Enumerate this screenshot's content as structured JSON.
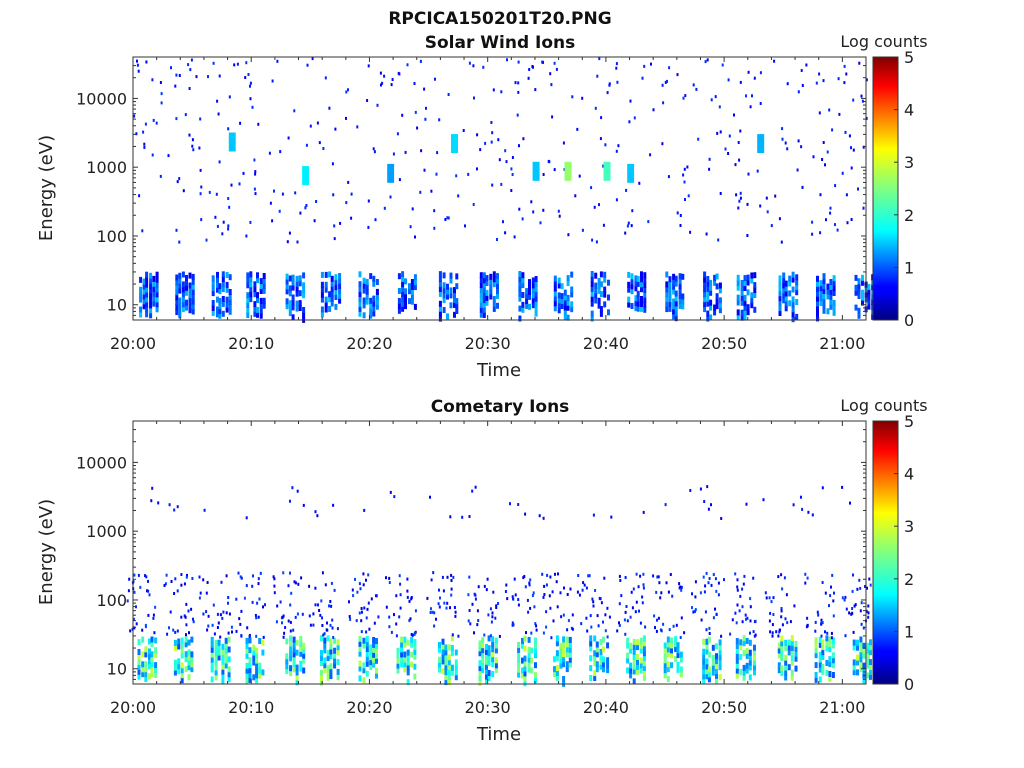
{
  "figure": {
    "title": "RPCICA150201T20.PNG"
  },
  "chart_data": [
    {
      "type": "heatmap",
      "title": "Solar Wind Ions",
      "xlabel": "Time",
      "ylabel": "Energy (eV)",
      "y_scale": "log",
      "ylim": [
        6,
        40000
      ],
      "y_ticks": [
        10,
        100,
        1000,
        10000
      ],
      "y_tick_labels": [
        "10",
        "100",
        "1000",
        "10000"
      ],
      "x_ticks": [
        "20:00",
        "20:10",
        "20:20",
        "20:30",
        "20:40",
        "20:50",
        "21:00"
      ],
      "x_range_minutes": [
        0,
        62
      ],
      "colorbar": {
        "label": "Log counts",
        "range": [
          0,
          5
        ],
        "ticks": [
          "0",
          "1",
          "2",
          "3",
          "4",
          "5"
        ],
        "colormap": "jet"
      },
      "bands": [
        {
          "energy_range": [
            6,
            28
          ],
          "level_range": [
            0.5,
            1.6
          ],
          "description": "repeated burst columns"
        },
        {
          "energy_range": [
            80,
            40000
          ],
          "level_range": [
            0.5,
            0.9
          ],
          "description": "sparse scattered counts"
        }
      ],
      "highlights": [
        {
          "time_min": 8.1,
          "energy": 2000,
          "level": 1.6
        },
        {
          "time_min": 14.3,
          "energy": 650,
          "level": 1.8
        },
        {
          "time_min": 21.5,
          "energy": 700,
          "level": 1.4
        },
        {
          "time_min": 26.9,
          "energy": 1900,
          "level": 1.7
        },
        {
          "time_min": 33.8,
          "energy": 750,
          "level": 1.6
        },
        {
          "time_min": 36.5,
          "energy": 750,
          "level": 2.6
        },
        {
          "time_min": 39.8,
          "energy": 750,
          "level": 2.2
        },
        {
          "time_min": 41.8,
          "energy": 700,
          "level": 1.6
        },
        {
          "time_min": 52.8,
          "energy": 1900,
          "level": 1.5
        }
      ],
      "burst_times_min": [
        0.5,
        3.6,
        6.7,
        9.6,
        12.9,
        15.9,
        19.1,
        22.4,
        25.9,
        29.3,
        32.6,
        35.6,
        38.7,
        41.8,
        45.0,
        48.2,
        51.1,
        54.6,
        57.8,
        61.0
      ]
    },
    {
      "type": "heatmap",
      "title": "Cometary Ions",
      "xlabel": "Time",
      "ylabel": "Energy (eV)",
      "y_scale": "log",
      "ylim": [
        6,
        40000
      ],
      "y_ticks": [
        10,
        100,
        1000,
        10000
      ],
      "y_tick_labels": [
        "10",
        "100",
        "1000",
        "10000"
      ],
      "x_ticks": [
        "20:00",
        "20:10",
        "20:20",
        "20:30",
        "20:40",
        "20:50",
        "21:00"
      ],
      "x_range_minutes": [
        0,
        62
      ],
      "colorbar": {
        "label": "Log counts",
        "range": [
          0,
          5
        ],
        "ticks": [
          "0",
          "1",
          "2",
          "3",
          "4",
          "5"
        ],
        "colormap": "jet"
      },
      "bands": [
        {
          "energy_range": [
            6,
            28
          ],
          "level_range": [
            1.0,
            2.9
          ],
          "description": "bright repeated burst columns"
        },
        {
          "energy_range": [
            28,
            250
          ],
          "level_range": [
            0.4,
            1.0
          ],
          "description": "dispersed low-energy tails"
        },
        {
          "energy_range": [
            1500,
            4500
          ],
          "level_range": [
            0.5,
            0.8
          ],
          "description": "sparse high-energy counts"
        }
      ],
      "burst_times_min": [
        0.4,
        3.5,
        6.6,
        9.5,
        12.9,
        15.8,
        19.1,
        22.3,
        25.8,
        29.2,
        32.5,
        35.5,
        38.6,
        41.7,
        44.9,
        48.1,
        51.0,
        54.5,
        57.7,
        60.9
      ]
    }
  ]
}
